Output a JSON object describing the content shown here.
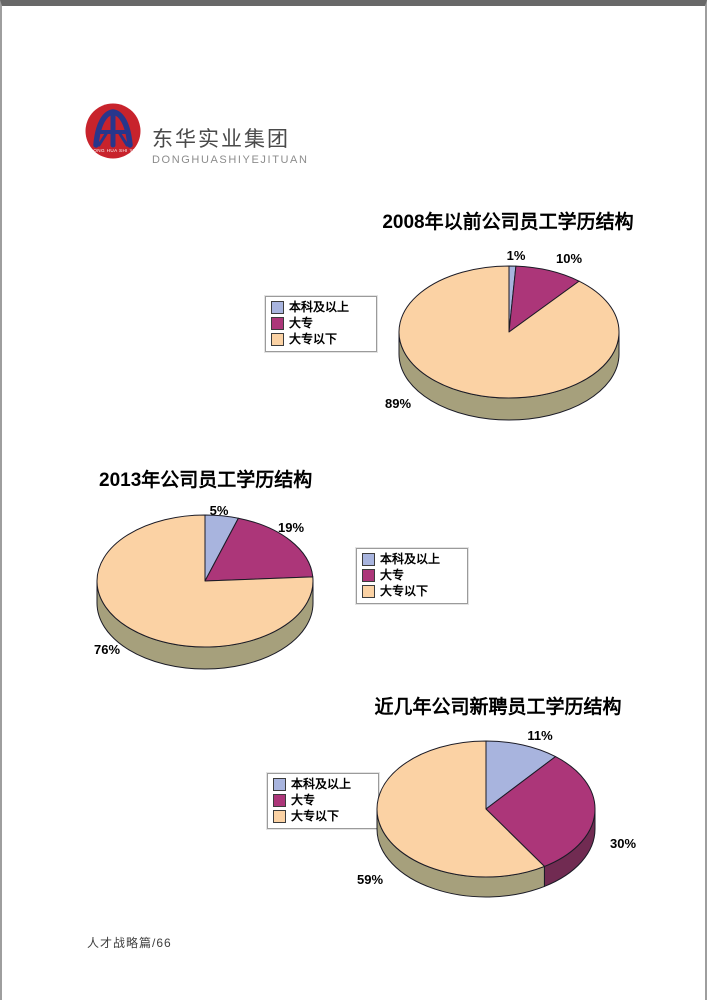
{
  "page": {
    "footer": "人才战略篇/66"
  },
  "logo": {
    "company_cn": "东华实业集团",
    "company_en": "DONGHUASHIYEJITUAN",
    "badge_text": "DONG HUA SHI YE"
  },
  "chart_data": [
    {
      "type": "pie",
      "style": "3d",
      "title": "2008年以前公司员工学历结构",
      "categories": [
        "本科及以上",
        "大专",
        "大专以下"
      ],
      "values": [
        1,
        10,
        89
      ],
      "labels": [
        "1%",
        "10%",
        "89%"
      ],
      "colors": [
        "#A8B4DE",
        "#AC3679",
        "#FBD2A4"
      ],
      "side_colors": [
        "#6F77A0",
        "#712B52",
        "#A6A07C"
      ],
      "start_angle": 0,
      "direction": "clockwise",
      "legend_position": "left"
    },
    {
      "type": "pie",
      "style": "3d",
      "title": "2013年公司员工学历结构",
      "categories": [
        "本科及以上",
        "大专",
        "大专以下"
      ],
      "values": [
        5,
        19,
        76
      ],
      "labels": [
        "5%",
        "19%",
        "76%"
      ],
      "colors": [
        "#A8B4DE",
        "#AC3679",
        "#FBD2A4"
      ],
      "side_colors": [
        "#6F77A0",
        "#712B52",
        "#A6A07C"
      ],
      "start_angle": 0,
      "direction": "clockwise",
      "legend_position": "right"
    },
    {
      "type": "pie",
      "style": "3d",
      "title": "近几年公司新聘员工学历结构",
      "categories": [
        "本科及以上",
        "大专",
        "大专以下"
      ],
      "values": [
        11,
        30,
        59
      ],
      "labels": [
        "11%",
        "30%",
        "59%"
      ],
      "colors": [
        "#A8B4DE",
        "#AC3679",
        "#FBD2A4"
      ],
      "side_colors": [
        "#6F77A0",
        "#712B52",
        "#A6A07C"
      ],
      "start_angle": 0,
      "direction": "clockwise",
      "legend_position": "left"
    }
  ]
}
